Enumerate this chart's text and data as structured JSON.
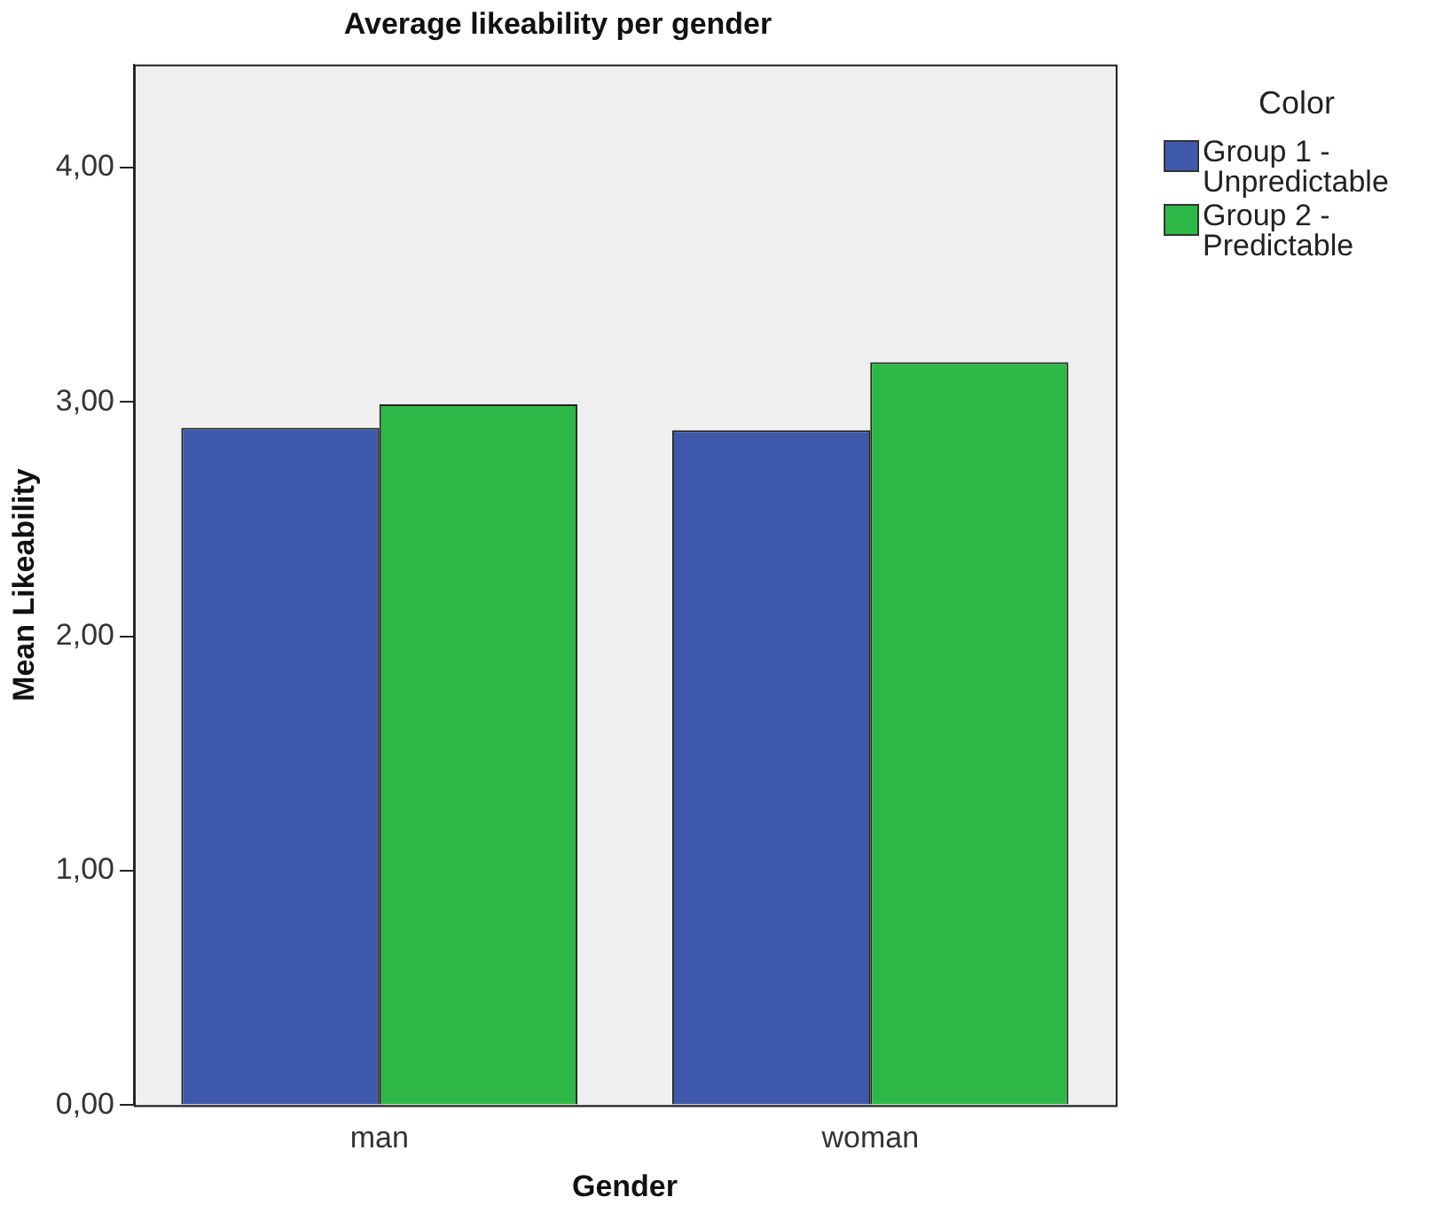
{
  "chart_data": {
    "type": "bar",
    "title": "Average likeability per gender",
    "xlabel": "Gender",
    "ylabel": "Mean Likeability",
    "legend_title": "Color",
    "categories": [
      "man",
      "woman"
    ],
    "series": [
      {
        "name": "Group 1 - Unpredictable",
        "color": "#3e58ac",
        "values": [
          2.89,
          2.88
        ]
      },
      {
        "name": "Group 2 - Predictable",
        "color": "#2eb848",
        "values": [
          2.99,
          3.17
        ]
      }
    ],
    "ylim": [
      0,
      4.44
    ],
    "yticks": [
      {
        "value": 0,
        "label": "0,00"
      },
      {
        "value": 1,
        "label": "1,00"
      },
      {
        "value": 2,
        "label": "2,00"
      },
      {
        "value": 3,
        "label": "3,00"
      },
      {
        "value": 4,
        "label": "4,00"
      }
    ],
    "grid": false,
    "legend": "right"
  }
}
